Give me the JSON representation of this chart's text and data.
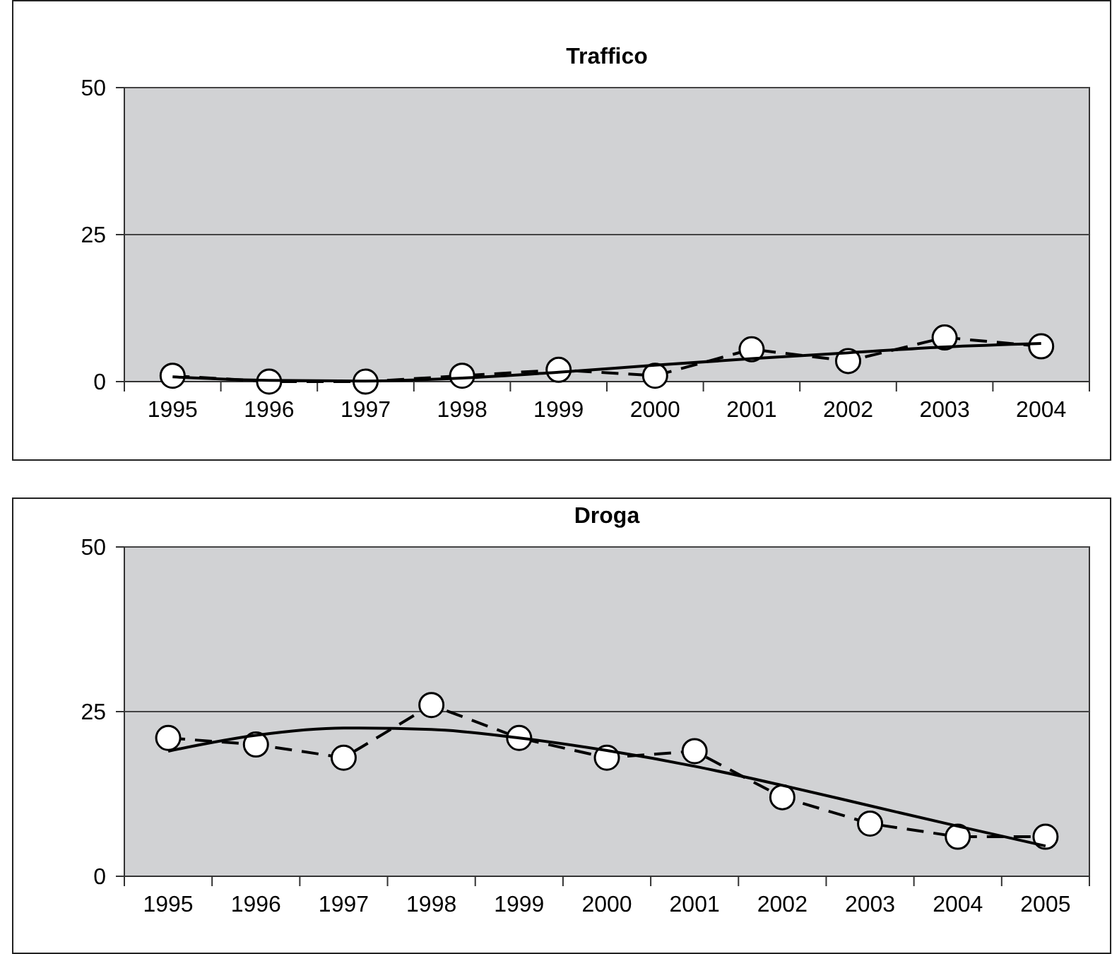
{
  "chart_data": [
    {
      "type": "line",
      "title": "Traffico",
      "categories": [
        "1995",
        "1996",
        "1997",
        "1998",
        "1999",
        "2000",
        "2001",
        "2002",
        "2003",
        "2004"
      ],
      "ylim": [
        0,
        50
      ],
      "yticks": [
        0,
        25,
        50
      ],
      "grid": "y",
      "series": [
        {
          "color": "#000000",
          "values": [
            1,
            0,
            0,
            1,
            2,
            1,
            5.5,
            3.5,
            7.5,
            6
          ],
          "marker": "circle",
          "line_style": "dashed"
        },
        {
          "color": "#000000",
          "values": [
            0.8,
            0.2,
            0.1,
            0.6,
            1.6,
            2.8,
            3.9,
            4.9,
            5.9,
            6.5
          ],
          "marker": "none",
          "line_style": "solid"
        }
      ]
    },
    {
      "type": "line",
      "title": "Droga",
      "categories": [
        "1995",
        "1996",
        "1997",
        "1998",
        "1999",
        "2000",
        "2001",
        "2002",
        "2003",
        "2004",
        "2005"
      ],
      "ylim": [
        0,
        50
      ],
      "yticks": [
        0,
        25,
        50
      ],
      "grid": "y",
      "series": [
        {
          "color": "#000000",
          "values": [
            21,
            20,
            18,
            26,
            21,
            18,
            19,
            12,
            8,
            6,
            6
          ],
          "marker": "circle",
          "line_style": "dashed"
        },
        {
          "color": "#000000",
          "values": [
            19,
            21.4,
            22.5,
            22.3,
            21,
            19.1,
            16.7,
            13.8,
            10.7,
            7.6,
            4.6
          ],
          "marker": "none",
          "line_style": "solid"
        }
      ]
    }
  ]
}
